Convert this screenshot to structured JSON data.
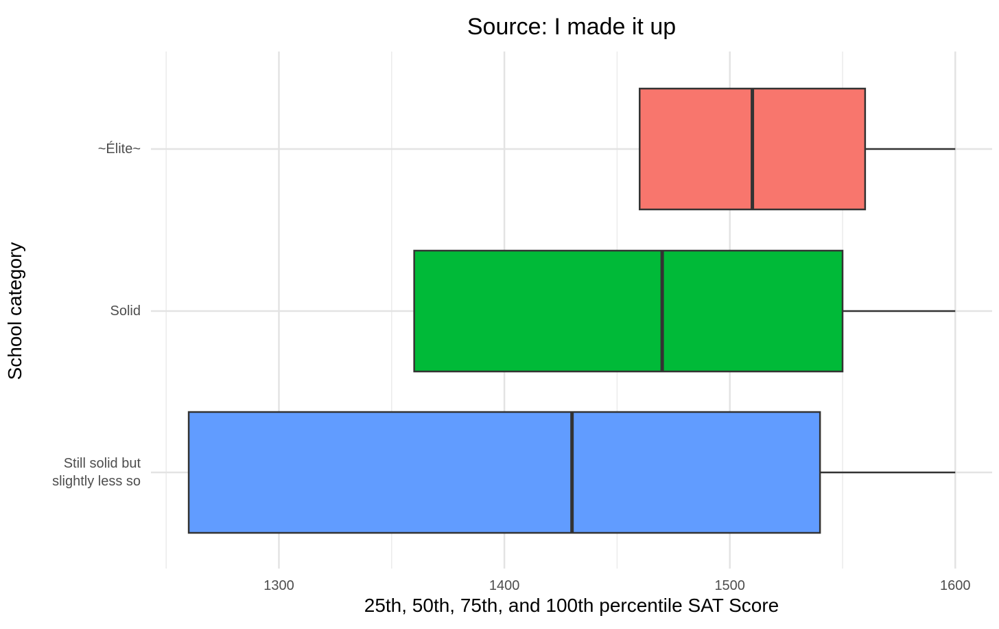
{
  "chart_data": {
    "type": "boxplot",
    "title": "Source: I made it up",
    "xlabel": "25th, 50th, 75th, and 100th percentile SAT Score",
    "ylabel": "School category",
    "xlim": [
      1250,
      1617
    ],
    "x_ticks": [
      1300,
      1400,
      1500,
      1600
    ],
    "x_tick_labels": [
      "1300",
      "1400",
      "1500",
      "1600"
    ],
    "grid": true,
    "legend": "none",
    "categories": [
      "~Élite~",
      "Solid",
      "Still solid but\nslightly less so"
    ],
    "series": [
      {
        "category": "~Élite~",
        "q1": 1460,
        "median": 1510,
        "q3": 1560,
        "max": 1600,
        "color": "#F8766D"
      },
      {
        "category": "Solid",
        "q1": 1360,
        "median": 1470,
        "q3": 1550,
        "max": 1600,
        "color": "#00BA38"
      },
      {
        "category": "Still solid but\nslightly less so",
        "q1": 1260,
        "median": 1430,
        "q3": 1540,
        "max": 1600,
        "color": "#619CFF"
      }
    ]
  }
}
